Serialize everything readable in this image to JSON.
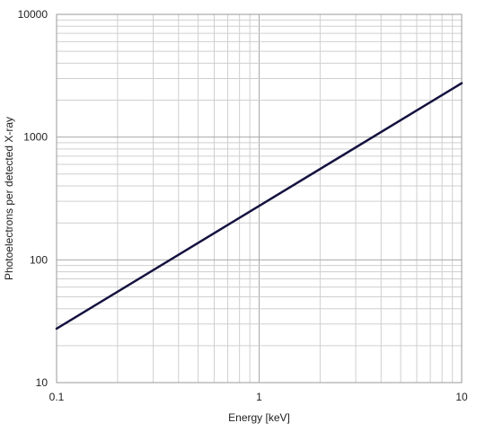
{
  "chart_data": {
    "type": "line",
    "xlabel": "Energy [keV]",
    "ylabel": "Photoelectrons per detected X-ray",
    "x_scale": "log",
    "y_scale": "log",
    "xlim": [
      0.1,
      10
    ],
    "ylim": [
      10,
      10000
    ],
    "x_tick_labels": [
      "0.1",
      "1",
      "10"
    ],
    "y_tick_labels": [
      "10",
      "100",
      "1000",
      "10000"
    ],
    "grid": true,
    "legend": "none",
    "series": [
      {
        "x": [
          0.1,
          10
        ],
        "y": [
          27.5,
          2750
        ],
        "color": "#14123f"
      }
    ]
  }
}
